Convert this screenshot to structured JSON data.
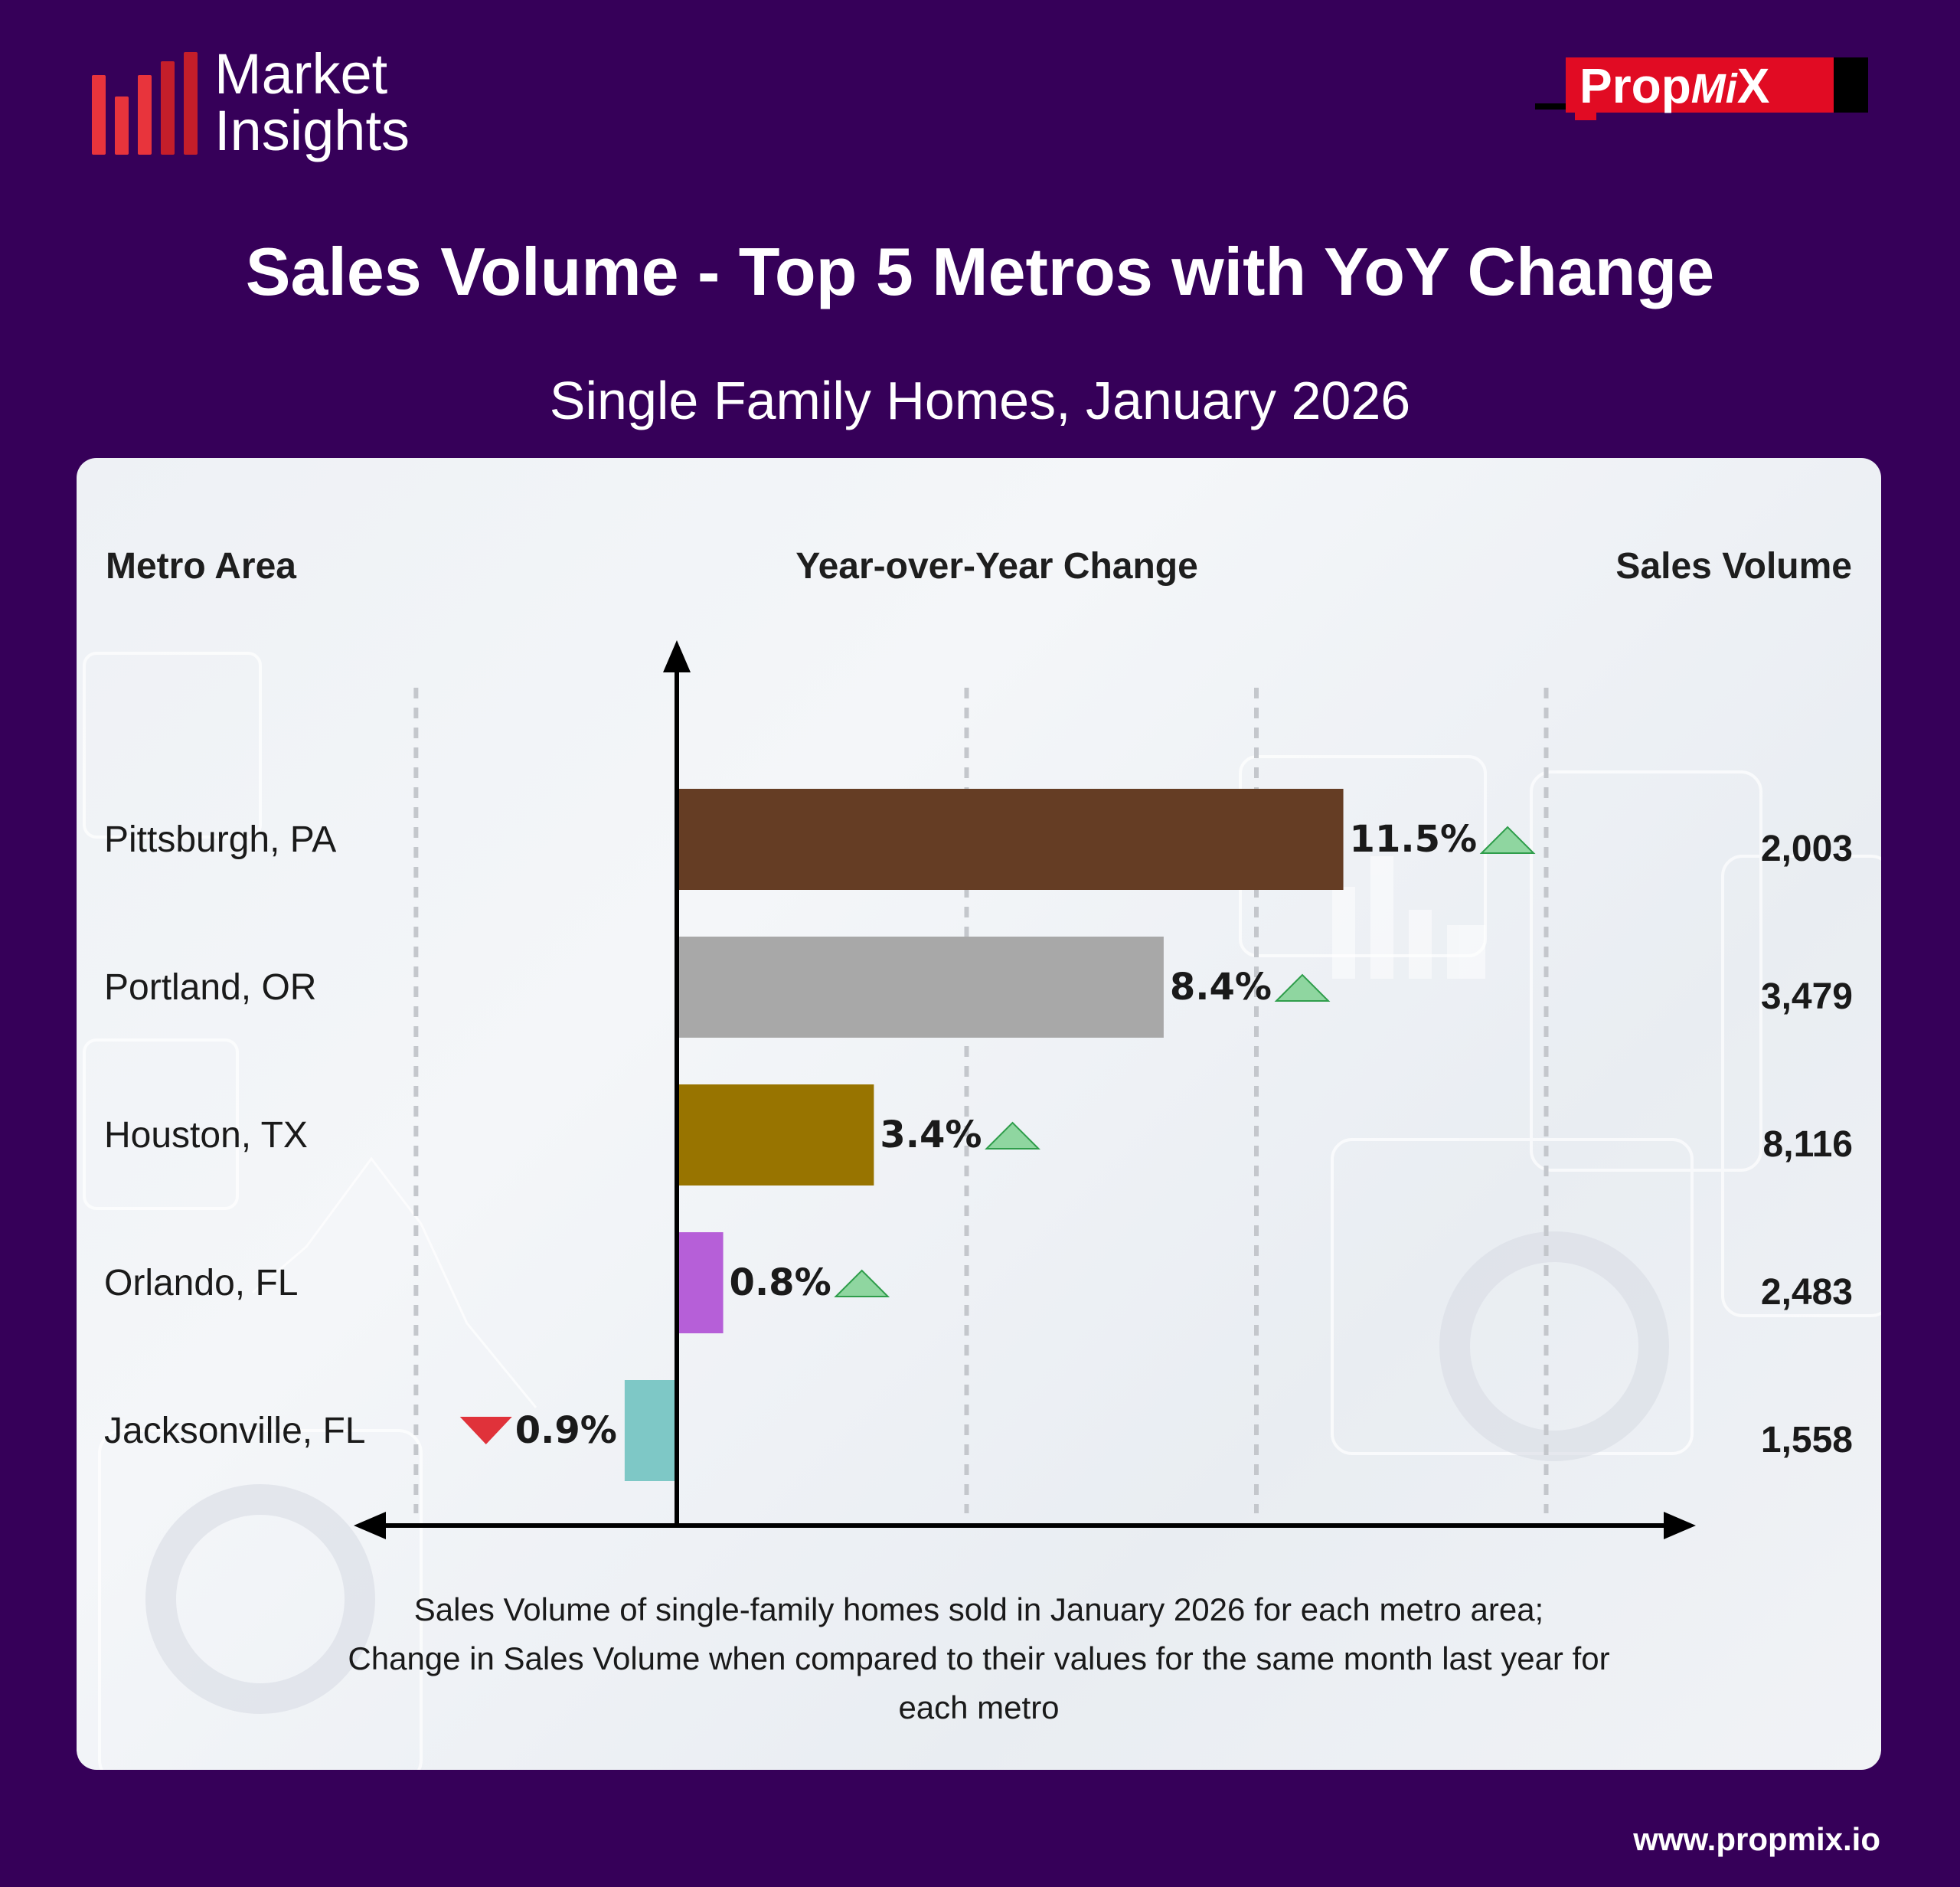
{
  "brand": {
    "line1": "Market",
    "line2": "Insights",
    "logo_prefix": "Prop",
    "logo_mid": "Mi",
    "logo_suffix": "X"
  },
  "title": "Sales Volume - Top 5 Metros with YoY Change",
  "subtitle": "Single Family Homes, January 2026",
  "headers": {
    "metro": "Metro Area",
    "yoy": "Year-over-Year Change",
    "volume": "Sales Volume"
  },
  "chart_data": {
    "type": "bar",
    "orientation": "horizontal",
    "title": "Sales Volume - Top 5 Metros with YoY Change",
    "subtitle": "Single Family Homes, January 2026",
    "categories": [
      "Pittsburgh, PA",
      "Portland, OR",
      "Houston, TX",
      "Orlando, FL",
      "Jacksonville, FL"
    ],
    "values": [
      11.5,
      8.4,
      3.4,
      0.8,
      -0.9
    ],
    "value_labels": [
      "11.5%",
      "8.4%",
      "3.4%",
      "0.8%",
      "0.9%"
    ],
    "direction": [
      "up",
      "up",
      "up",
      "up",
      "down"
    ],
    "bar_colors": [
      "#653d24",
      "#a8a8a8",
      "#987400",
      "#b65fd8",
      "#7ec8c6"
    ],
    "sales_volume": [
      "2,003",
      "3,479",
      "8,116",
      "2,483",
      "1,558"
    ],
    "xlim": [
      -4,
      19
    ],
    "gridlines": [
      -4.5,
      5,
      10,
      15
    ],
    "grid": true,
    "up_color": "#8fd6a0",
    "down_color": "#e0323a"
  },
  "footnote": {
    "line1": "Sales Volume of single-family homes sold in January 2026 for each metro area;",
    "line2": "Change in Sales Volume when compared to their values for the same month last year for",
    "line3": "each metro"
  },
  "url": "www.propmix.io"
}
